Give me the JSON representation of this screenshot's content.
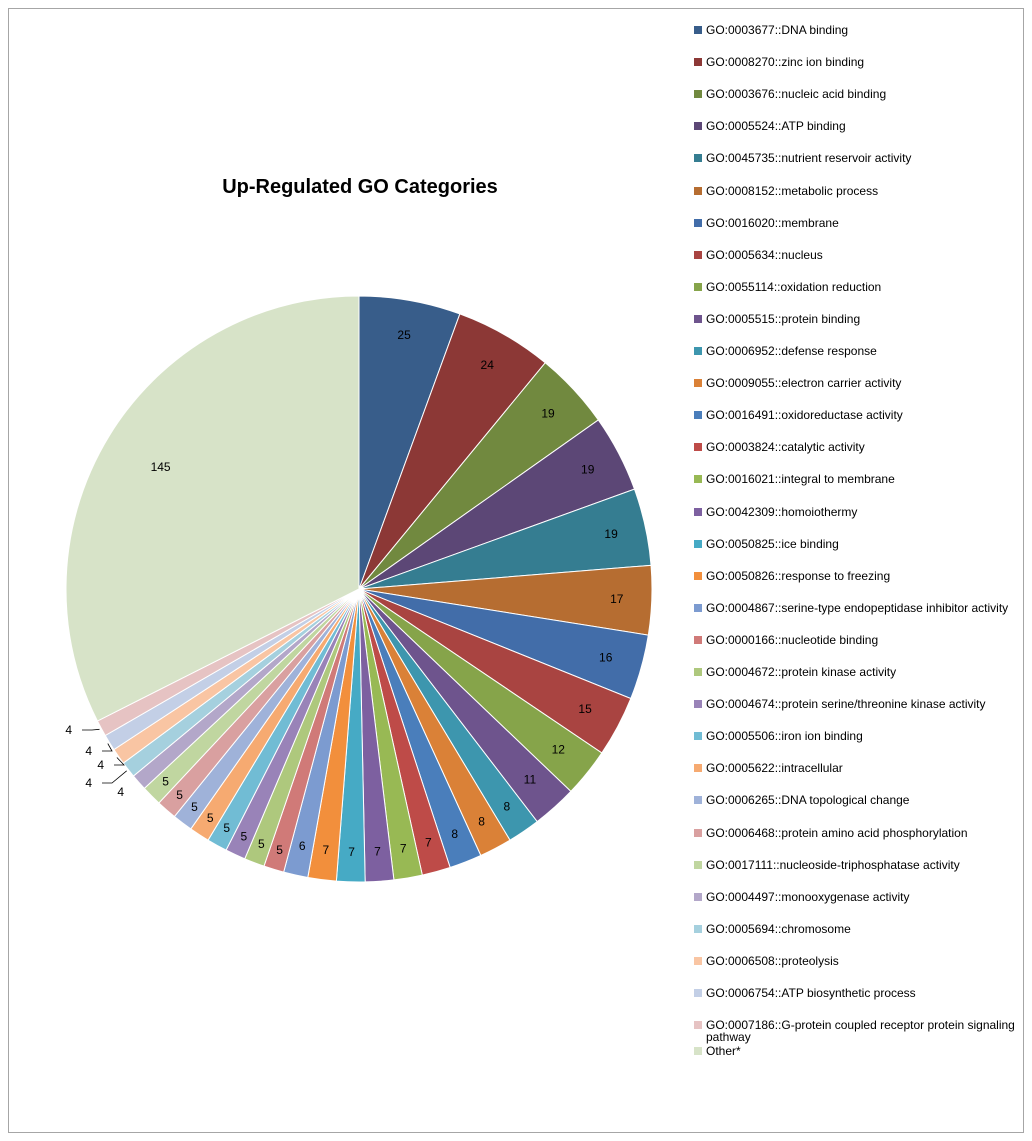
{
  "chart_data": {
    "type": "pie",
    "title": "Up-Regulated GO Categories",
    "legend_position": "right",
    "slices": [
      {
        "label": "GO:0003677::DNA binding",
        "value": 25,
        "color": "#385d8a"
      },
      {
        "label": "GO:0008270::zinc ion binding",
        "value": 24,
        "color": "#8c3836"
      },
      {
        "label": "GO:0003676::nucleic acid binding",
        "value": 19,
        "color": "#71893f"
      },
      {
        "label": "GO:0005524::ATP binding",
        "value": 19,
        "color": "#5c4776"
      },
      {
        "label": "GO:0045735::nutrient reservoir activity",
        "value": 19,
        "color": "#357d91"
      },
      {
        "label": "GO:0008152::metabolic process",
        "value": 17,
        "color": "#b66d31"
      },
      {
        "label": "GO:0016020::membrane",
        "value": 16,
        "color": "#426da9"
      },
      {
        "label": "GO:0005634::nucleus",
        "value": 15,
        "color": "#a94441"
      },
      {
        "label": "GO:0055114::oxidation reduction",
        "value": 12,
        "color": "#86a44a"
      },
      {
        "label": "GO:0005515::protein binding",
        "value": 11,
        "color": "#6e548d"
      },
      {
        "label": "GO:0006952::defense response",
        "value": 8,
        "color": "#3d96ae"
      },
      {
        "label": "GO:0009055::electron carrier activity",
        "value": 8,
        "color": "#da8137"
      },
      {
        "label": "GO:0016491::oxidoreductase activity",
        "value": 8,
        "color": "#4a7ebb"
      },
      {
        "label": "GO:0003824::catalytic activity",
        "value": 7,
        "color": "#be4b48"
      },
      {
        "label": "GO:0016021::integral to membrane",
        "value": 7,
        "color": "#98b954"
      },
      {
        "label": "GO:0042309::homoiothermy",
        "value": 7,
        "color": "#7d60a0"
      },
      {
        "label": "GO:0050825::ice binding",
        "value": 7,
        "color": "#46aac5"
      },
      {
        "label": "GO:0050826::response to freezing",
        "value": 7,
        "color": "#f28f3c"
      },
      {
        "label": "GO:0004867::serine-type endopeptidase inhibitor activity",
        "value": 6,
        "color": "#7c9bd0"
      },
      {
        "label": "GO:0000166::nucleotide binding",
        "value": 5,
        "color": "#d07a78"
      },
      {
        "label": "GO:0004672::protein kinase activity",
        "value": 5,
        "color": "#aec87d"
      },
      {
        "label": "GO:0004674::protein serine/threonine kinase activity",
        "value": 5,
        "color": "#9983b8"
      },
      {
        "label": "GO:0005506::iron ion binding",
        "value": 5,
        "color": "#71bcd4"
      },
      {
        "label": "GO:0005622::intracellular",
        "value": 5,
        "color": "#f6aa71"
      },
      {
        "label": "GO:0006265::DNA topological change",
        "value": 5,
        "color": "#9fb2d9"
      },
      {
        "label": "GO:0006468::protein amino acid phosphorylation",
        "value": 5,
        "color": "#d9a0a0"
      },
      {
        "label": "GO:0017111::nucleoside-triphosphatase activity",
        "value": 5,
        "color": "#c0d6a0"
      },
      {
        "label": "GO:0004497::monooxygenase activity",
        "value": 4,
        "color": "#b3a7c9"
      },
      {
        "label": "GO:0005694::chromosome",
        "value": 4,
        "color": "#a5d0de"
      },
      {
        "label": "GO:0006508::proteolysis",
        "value": 4,
        "color": "#f9c5a3"
      },
      {
        "label": "GO:0006754::ATP biosynthetic process",
        "value": 4,
        "color": "#c3cfe6"
      },
      {
        "label": "GO:0007186::G-protein coupled receptor protein signaling pathway",
        "value": 4,
        "color": "#e6c3c3"
      },
      {
        "label": "Other*",
        "value": 145,
        "color": "#d7e3c8"
      }
    ]
  }
}
